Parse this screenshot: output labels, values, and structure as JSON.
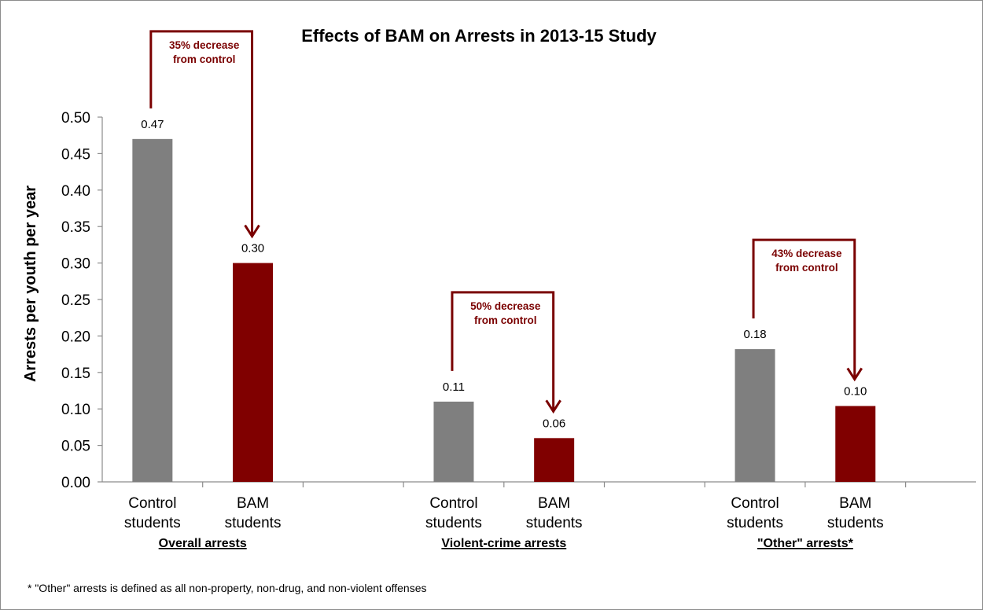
{
  "chart_data": {
    "type": "bar",
    "title": "Effects of BAM on Arrests in 2013-15 Study",
    "ylabel": "Arrests per youth per year",
    "xlabel": "",
    "ylim": [
      0,
      0.5
    ],
    "yticks": [
      "0.00",
      "0.05",
      "0.10",
      "0.15",
      "0.20",
      "0.25",
      "0.30",
      "0.35",
      "0.40",
      "0.45",
      "0.50"
    ],
    "grid": false,
    "groups": [
      {
        "label": "Overall arrests",
        "bars": [
          {
            "category": [
              "Control",
              "students"
            ],
            "value": 0.47,
            "value_label": "0.47",
            "color": "#7f7f7f"
          },
          {
            "category": [
              "BAM",
              "students"
            ],
            "value": 0.3,
            "value_label": "0.30",
            "color": "#800000"
          }
        ],
        "annotation": [
          "35% decrease",
          "from control"
        ]
      },
      {
        "label": "Violent-crime arrests",
        "bars": [
          {
            "category": [
              "Control",
              "students"
            ],
            "value": 0.11,
            "value_label": "0.11",
            "color": "#7f7f7f"
          },
          {
            "category": [
              "BAM",
              "students"
            ],
            "value": 0.06,
            "value_label": "0.06",
            "color": "#800000"
          }
        ],
        "annotation": [
          "50% decrease",
          "from control"
        ]
      },
      {
        "label": "\"Other\" arrests*",
        "bars": [
          {
            "category": [
              "Control",
              "students"
            ],
            "value": 0.182,
            "value_label": "0.18",
            "color": "#7f7f7f"
          },
          {
            "category": [
              "BAM",
              "students"
            ],
            "value": 0.104,
            "value_label": "0.10",
            "color": "#800000"
          }
        ],
        "annotation": [
          "43% decrease",
          "from control"
        ]
      }
    ],
    "annotation_color": "#7a0000",
    "footnote": "* \"Other\" arrests is defined as all non-property, non-drug, and non-violent offenses"
  }
}
